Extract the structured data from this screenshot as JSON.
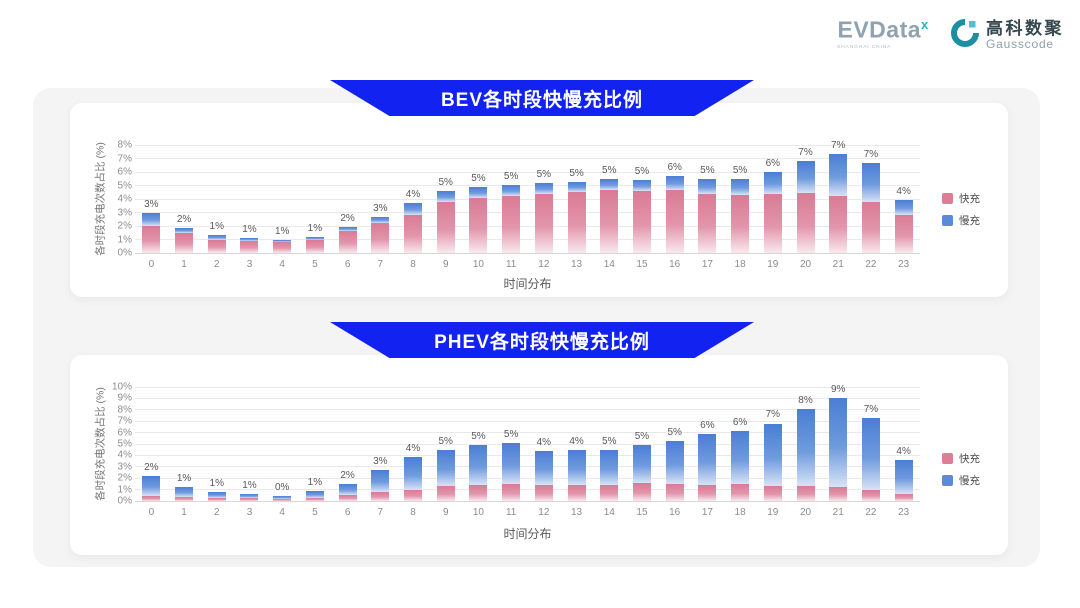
{
  "header": {
    "evdata": {
      "text": "EVData",
      "sup": "x",
      "subtext": "SHANGHAI CHINA"
    },
    "gausscode": {
      "cn": "高科数聚",
      "en": "Gausscode"
    }
  },
  "theme": {
    "banner_color": "#1222f0",
    "fast_color": "#dd7e97",
    "slow_color": "#5c8ada"
  },
  "chart_data": [
    {
      "type": "bar",
      "stacked": true,
      "title": "BEV各时段快慢充比例",
      "xlabel": "时间分布",
      "ylabel": "各时段充电次数占比 (%)",
      "ymax": 8,
      "ylim": [
        0,
        8
      ],
      "grid": true,
      "legend_position": "right",
      "yticks": [
        "0%",
        "1%",
        "2%",
        "3%",
        "4%",
        "5%",
        "6%",
        "7%",
        "8%"
      ],
      "categories": [
        "0",
        "1",
        "2",
        "3",
        "4",
        "5",
        "6",
        "7",
        "8",
        "9",
        "10",
        "11",
        "12",
        "13",
        "14",
        "15",
        "16",
        "17",
        "18",
        "19",
        "20",
        "21",
        "22",
        "23"
      ],
      "series": [
        {
          "name": "快充",
          "color": "#dd7e97",
          "values": [
            2.0,
            1.45,
            1.0,
            0.9,
            0.85,
            1.0,
            1.6,
            2.2,
            2.85,
            3.8,
            4.1,
            4.2,
            4.4,
            4.5,
            4.65,
            4.6,
            4.7,
            4.35,
            4.3,
            4.35,
            4.45,
            4.2,
            3.8,
            2.8
          ]
        },
        {
          "name": "慢充",
          "color": "#5c8ada",
          "values": [
            0.95,
            0.4,
            0.3,
            0.2,
            0.1,
            0.2,
            0.3,
            0.5,
            0.85,
            0.8,
            0.8,
            0.85,
            0.75,
            0.75,
            0.85,
            0.8,
            1.0,
            1.15,
            1.2,
            1.65,
            2.35,
            3.1,
            2.9,
            1.1
          ]
        }
      ],
      "total_labels": [
        "3%",
        "2%",
        "1%",
        "1%",
        "1%",
        "1%",
        "2%",
        "3%",
        "4%",
        "5%",
        "5%",
        "5%",
        "5%",
        "5%",
        "5%",
        "5%",
        "6%",
        "5%",
        "5%",
        "6%",
        "7%",
        "7%",
        "7%",
        "4%"
      ]
    },
    {
      "type": "bar",
      "stacked": true,
      "title": "PHEV各时段快慢充比例",
      "xlabel": "时间分布",
      "ylabel": "各时段充电次数占比 (%)",
      "ymax": 10,
      "ylim": [
        0,
        10
      ],
      "grid": true,
      "legend_position": "right",
      "yticks": [
        "0%",
        "1%",
        "2%",
        "3%",
        "4%",
        "5%",
        "6%",
        "7%",
        "8%",
        "9%",
        "10%"
      ],
      "categories": [
        "0",
        "1",
        "2",
        "3",
        "4",
        "5",
        "6",
        "7",
        "8",
        "9",
        "10",
        "11",
        "12",
        "13",
        "14",
        "15",
        "16",
        "17",
        "18",
        "19",
        "20",
        "21",
        "22",
        "23"
      ],
      "series": [
        {
          "name": "快充",
          "color": "#dd7e97",
          "values": [
            0.45,
            0.35,
            0.3,
            0.25,
            0.15,
            0.3,
            0.55,
            0.75,
            1.0,
            1.3,
            1.4,
            1.5,
            1.4,
            1.4,
            1.4,
            1.6,
            1.5,
            1.4,
            1.5,
            1.3,
            1.3,
            1.2,
            1.0,
            0.6
          ]
        },
        {
          "name": "慢充",
          "color": "#5c8ada",
          "values": [
            1.75,
            0.85,
            0.5,
            0.35,
            0.3,
            0.55,
            0.95,
            2.0,
            2.9,
            3.2,
            3.5,
            3.55,
            3.0,
            3.05,
            3.1,
            3.3,
            3.8,
            4.5,
            4.6,
            5.5,
            6.8,
            7.8,
            6.3,
            3.0
          ]
        }
      ],
      "total_labels": [
        "2%",
        "1%",
        "1%",
        "1%",
        "0%",
        "1%",
        "2%",
        "3%",
        "4%",
        "5%",
        "5%",
        "5%",
        "4%",
        "4%",
        "5%",
        "5%",
        "5%",
        "6%",
        "6%",
        "7%",
        "8%",
        "9%",
        "7%",
        "4%"
      ]
    }
  ]
}
